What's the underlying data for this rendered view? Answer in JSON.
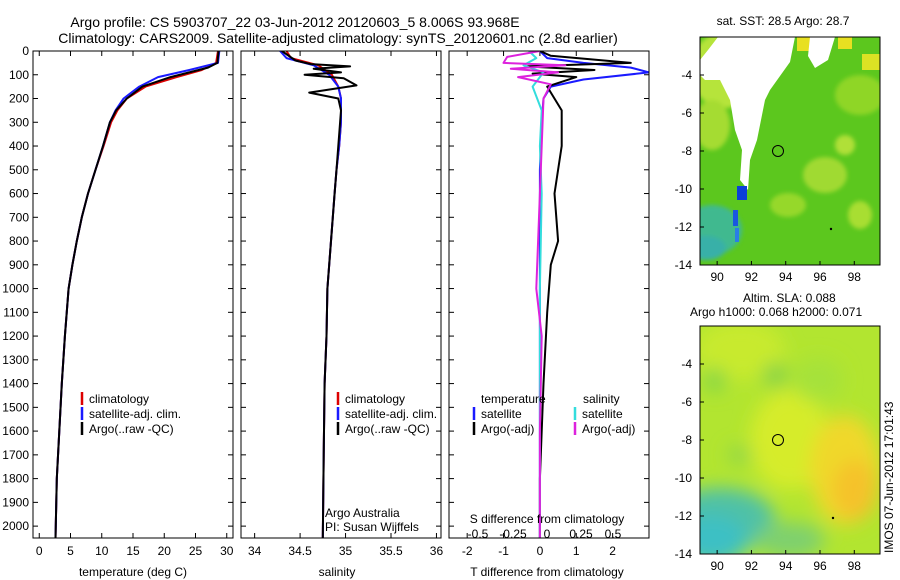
{
  "header": {
    "line1": "Argo profile: CS 5903707_22 03-Jun-2012 20120603_5 8.006S 93.968E",
    "line2": "Climatology: CARS2009. Satellite-adjusted climatology: synTS_20120601.nc (2.8d earlier)"
  },
  "side_label": "IMOS 07-Jun-2012 17:01:43",
  "colors": {
    "climatology": "#dd0000",
    "satellite": "#1a1aff",
    "argo": "#000000",
    "sal_sat": "#33dddd",
    "sal_argo": "#dd22dd"
  },
  "chart_data": [
    {
      "id": "temperature",
      "type": "line",
      "xlabel": "temperature (deg C)",
      "ylabel": "",
      "xlim": [
        -1,
        31
      ],
      "ylim": [
        2050,
        0
      ],
      "xticks": [
        0,
        5,
        10,
        15,
        20,
        25,
        30
      ],
      "yticks": [
        0,
        100,
        200,
        300,
        400,
        500,
        600,
        700,
        800,
        900,
        1000,
        1100,
        1200,
        1300,
        1400,
        1500,
        1600,
        1700,
        1800,
        1900,
        2000
      ],
      "legend": [
        "climatology",
        "satellite-adj. clim.",
        "Argo(..raw -QC)"
      ],
      "series": [
        {
          "name": "climatology",
          "color": "#dd0000",
          "x": [
            28.6,
            28.3,
            26,
            22,
            17,
            14,
            12.5,
            11.5,
            10.3,
            9,
            7.8,
            6.8,
            6,
            5.3,
            4.7,
            4.1,
            3.6,
            3.2,
            2.8,
            2.6
          ],
          "y": [
            0,
            50,
            80,
            110,
            150,
            200,
            250,
            300,
            400,
            500,
            600,
            700,
            800,
            900,
            1000,
            1200,
            1400,
            1600,
            1800,
            2050
          ]
        },
        {
          "name": "satellite-adj. clim.",
          "color": "#1a1aff",
          "x": [
            28.8,
            28.6,
            24,
            19,
            16,
            13.5,
            12.2,
            11.3,
            10.2,
            9,
            7.8,
            6.8,
            6,
            5.3,
            4.7,
            4.1,
            3.6,
            3.2,
            2.8,
            2.6
          ],
          "y": [
            0,
            50,
            80,
            110,
            150,
            200,
            250,
            300,
            400,
            500,
            600,
            700,
            800,
            900,
            1000,
            1200,
            1400,
            1600,
            1800,
            2050
          ]
        },
        {
          "name": "Argo(..raw -QC)",
          "color": "#000000",
          "x": [
            28.7,
            28.5,
            27,
            21,
            16.5,
            14,
            12.3,
            11.3,
            10.2,
            9,
            7.8,
            6.8,
            6,
            5.3,
            4.7,
            4.1,
            3.6,
            3.2,
            2.8,
            2.6
          ],
          "y": [
            0,
            50,
            70,
            110,
            150,
            200,
            250,
            300,
            400,
            500,
            600,
            700,
            800,
            900,
            1000,
            1200,
            1400,
            1600,
            1800,
            2050
          ]
        }
      ]
    },
    {
      "id": "salinity",
      "type": "line",
      "xlabel": "salinity",
      "xlim": [
        33.85,
        36.05
      ],
      "ylim": [
        2050,
        0
      ],
      "xticks": [
        34,
        34.5,
        35,
        35.5,
        36
      ],
      "legend": [
        "climatology",
        "satellite-adj. clim.",
        "Argo(..raw -QC)"
      ],
      "annotation": [
        "Argo Australia",
        "PI: Susan Wijffels"
      ],
      "series": [
        {
          "name": "climatology",
          "color": "#dd0000",
          "x": [
            34.35,
            34.4,
            34.7,
            34.85,
            34.92,
            34.95,
            34.95,
            34.93,
            34.9,
            34.88,
            34.86,
            34.84,
            34.82,
            34.8,
            34.79,
            34.77,
            34.76,
            34.75
          ],
          "y": [
            0,
            30,
            60,
            100,
            150,
            200,
            300,
            400,
            500,
            600,
            700,
            800,
            900,
            1000,
            1200,
            1400,
            1700,
            2050
          ]
        },
        {
          "name": "satellite-adj. clim.",
          "color": "#1a1aff",
          "x": [
            34.28,
            34.35,
            34.65,
            34.82,
            34.92,
            34.95,
            34.95,
            34.93,
            34.9,
            34.88,
            34.86,
            34.84,
            34.82,
            34.8,
            34.79,
            34.77,
            34.76,
            34.75
          ],
          "y": [
            0,
            30,
            60,
            100,
            150,
            200,
            300,
            400,
            500,
            600,
            700,
            800,
            900,
            1000,
            1200,
            1400,
            1700,
            2050
          ]
        },
        {
          "name": "Argo(..raw -QC)",
          "color": "#000000",
          "x": [
            34.3,
            34.45,
            34.62,
            35.05,
            34.65,
            34.95,
            34.55,
            34.98,
            35.12,
            34.6,
            34.92,
            34.95,
            34.94,
            34.92,
            34.9,
            34.88,
            34.86,
            34.84,
            34.82,
            34.8,
            34.79,
            34.77,
            34.76,
            34.75
          ],
          "y": [
            0,
            40,
            55,
            65,
            75,
            90,
            100,
            115,
            145,
            175,
            200,
            250,
            300,
            400,
            500,
            600,
            700,
            800,
            900,
            1000,
            1200,
            1400,
            1700,
            2050
          ]
        }
      ]
    },
    {
      "id": "difference",
      "type": "line",
      "xlabel": "T difference from climatology",
      "top_label": "S difference from climatology",
      "xlim": [
        -2.5,
        3.0
      ],
      "ylim": [
        2050,
        0
      ],
      "xticks": [
        -2,
        -1,
        0,
        1,
        2
      ],
      "top_ticks": [
        "-0.5",
        "-0.25",
        "0",
        "0.25",
        "0.5"
      ],
      "legend_headers": [
        "temperature",
        "salinity"
      ],
      "legend": [
        "satellite",
        "Argo(-adj)",
        "satellite",
        "Argo(-adj)"
      ],
      "series": [
        {
          "name": "temperature satellite",
          "color": "#1a1aff",
          "x": [
            0,
            0.2,
            1.2,
            2.5,
            3.0,
            1.2,
            0.3,
            0.1,
            0.05,
            0,
            0,
            0
          ],
          "y": [
            0,
            30,
            50,
            70,
            90,
            120,
            150,
            200,
            300,
            500,
            1000,
            2050
          ]
        },
        {
          "name": "temperature Argo(-adj)",
          "color": "#000000",
          "x": [
            0,
            0.3,
            2.5,
            -0.4,
            1.5,
            -0.2,
            1.0,
            0.2,
            0.6,
            0.6,
            0.4,
            0.5,
            0.3,
            0.2,
            0.1,
            0,
            0
          ],
          "y": [
            0,
            20,
            50,
            65,
            80,
            95,
            110,
            150,
            250,
            400,
            600,
            800,
            900,
            1100,
            1400,
            1800,
            2050
          ]
        },
        {
          "name": "salinity satellite",
          "color": "#33dddd",
          "x": [
            -0.3,
            -0.1,
            -0.45,
            0.1,
            -0.2,
            0.05,
            0,
            0.05,
            0,
            0,
            0
          ],
          "y": [
            0,
            30,
            60,
            90,
            150,
            250,
            400,
            600,
            1000,
            1500,
            2050
          ]
        },
        {
          "name": "salinity Argo(-adj)",
          "color": "#dd22dd",
          "x": [
            0,
            -0.9,
            -1.0,
            0.7,
            -0.8,
            0.5,
            -0.6,
            0.3,
            0.1,
            0.05,
            -0.1,
            0.05,
            0,
            0
          ],
          "y": [
            0,
            25,
            50,
            60,
            75,
            90,
            110,
            140,
            200,
            400,
            1000,
            1200,
            1600,
            2050
          ]
        }
      ]
    },
    {
      "id": "sst-map",
      "type": "heatmap",
      "title": "sat. SST: 28.5 Argo: 28.7",
      "xlim": [
        89,
        99.5
      ],
      "ylim": [
        -14,
        -2
      ],
      "xticks": [
        90,
        92,
        94,
        96,
        98
      ],
      "yticks": [
        -4,
        -6,
        -8,
        -10,
        -12,
        -14
      ],
      "marker": {
        "lon": 94,
        "lat": -8
      }
    },
    {
      "id": "sla-map",
      "type": "heatmap",
      "title_lines": [
        "Altim. SLA: 0.088",
        "Argo h1000: 0.068 h2000: 0.071"
      ],
      "xlim": [
        89,
        99.5
      ],
      "ylim": [
        -14,
        -2
      ],
      "xticks": [
        90,
        92,
        94,
        96,
        98
      ],
      "yticks": [
        -4,
        -6,
        -8,
        -10,
        -12,
        -14
      ],
      "marker": {
        "lon": 94,
        "lat": -8
      }
    }
  ]
}
